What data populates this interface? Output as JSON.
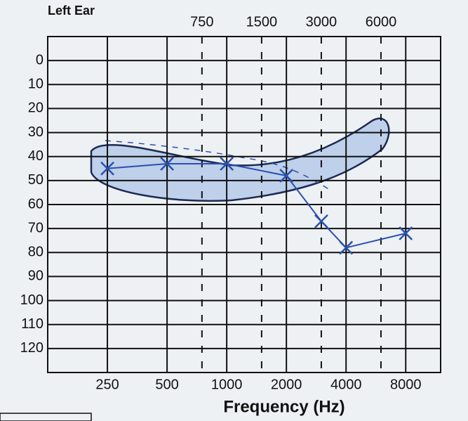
{
  "chart_data": {
    "type": "line",
    "title": "Left Ear",
    "x_label": "Frequency (Hz)",
    "x": [
      250,
      500,
      1000,
      2000,
      3000,
      4000,
      8000
    ],
    "series": [
      {
        "name": "Left Ear",
        "color": "#2a4fb0",
        "marker": "x",
        "values": [
          45,
          43,
          43,
          48,
          67,
          78,
          72
        ]
      }
    ],
    "xscale": "log",
    "xlim": [
      125,
      12000
    ],
    "xticks": [
      250,
      500,
      1000,
      2000,
      4000,
      8000
    ],
    "x2ticks": [
      750,
      1500,
      3000,
      6000
    ],
    "ylim": [
      -10,
      130
    ],
    "invert_y": true,
    "yticks": [
      0,
      10,
      20,
      30,
      40,
      50,
      60,
      70,
      80,
      90,
      100,
      110,
      120
    ],
    "grid": true
  }
}
